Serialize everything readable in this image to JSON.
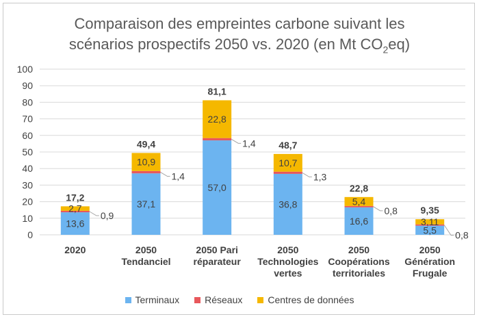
{
  "chart_data": {
    "type": "bar",
    "stacked": true,
    "title_main": "Comparaison des empreintes carbone suivant les",
    "title_line2_pre": "scénarios prospectifs 2050 vs. 2020 (en Mt CO",
    "title_sub": "2",
    "title_line2_post": "eq)",
    "categories": [
      [
        "2020"
      ],
      [
        "2050",
        "Tendanciel"
      ],
      [
        "2050 Pari",
        "réparateur"
      ],
      [
        "2050",
        "Technologies",
        "vertes"
      ],
      [
        "2050",
        "Coopérations",
        "territoriales"
      ],
      [
        "2050",
        "Génération",
        "Frugale"
      ]
    ],
    "series": [
      {
        "name": "Terminaux",
        "color": "#6cb4f0",
        "values": [
          13.6,
          37.1,
          57.0,
          36.8,
          16.6,
          5.5
        ],
        "labels": [
          "13,6",
          "37,1",
          "57,0",
          "36,8",
          "16,6",
          "5,5"
        ]
      },
      {
        "name": "Réseaux",
        "color": "#e8585c",
        "values": [
          0.9,
          1.4,
          1.4,
          1.3,
          0.8,
          0.8
        ],
        "labels": [
          "0,9",
          "1,4",
          "1,4",
          "1,3",
          "0,8",
          "0,8"
        ]
      },
      {
        "name": "Centres de données",
        "color": "#f5b800",
        "values": [
          2.7,
          10.9,
          22.8,
          10.7,
          5.4,
          3.11
        ],
        "labels": [
          "2,7",
          "10,9",
          "22,8",
          "10,7",
          "5,4",
          "3,11"
        ]
      }
    ],
    "totals": [
      "17,2",
      "49,4",
      "81,1",
      "48,7",
      "22,8",
      "9,35"
    ],
    "ylim": [
      0,
      100
    ],
    "yticks": [
      0,
      10,
      20,
      30,
      40,
      50,
      60,
      70,
      80,
      90,
      100
    ],
    "grid": true,
    "legend_position": "bottom"
  }
}
